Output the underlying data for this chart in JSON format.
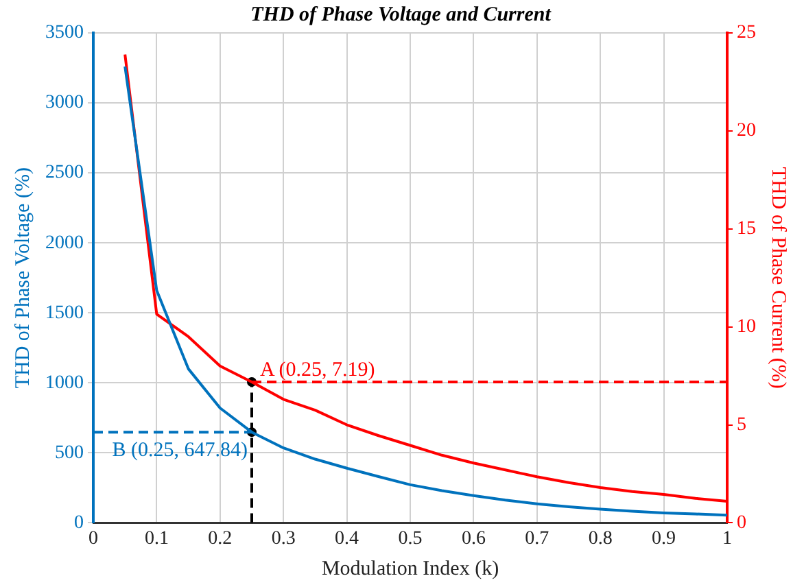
{
  "chart_data": {
    "type": "line",
    "title": "THD of Phase Voltage and Current",
    "xlabel": "Modulation Index (k)",
    "ylabel": "THD of Phase Voltage (%)",
    "y2label": "THD of Phase Current (%)",
    "x": [
      0.05,
      0.1,
      0.15,
      0.2,
      0.25,
      0.3,
      0.35,
      0.4,
      0.45,
      0.5,
      0.55,
      0.6,
      0.65,
      0.7,
      0.75,
      0.8,
      0.85,
      0.9,
      0.95,
      1.0
    ],
    "series": [
      {
        "color": "#0072bd",
        "values": [
          3260,
          1660,
          1100,
          820,
          647.84,
          535,
          455,
          390,
          330,
          272,
          230,
          194,
          162,
          136,
          115,
          97,
          83,
          71,
          63,
          55
        ]
      },
      {
        "color": "#ff0000",
        "axis": "y2",
        "values": [
          23.9,
          10.65,
          9.5,
          8.0,
          7.19,
          6.3,
          5.75,
          5.0,
          4.45,
          3.95,
          3.45,
          3.05,
          2.7,
          2.35,
          2.05,
          1.8,
          1.6,
          1.45,
          1.25,
          1.1
        ]
      },
      {
        "color": "#0072bd",
        "line_style": "dashed",
        "x": [
          0,
          0.25
        ],
        "values": [
          647.84,
          647.84
        ]
      },
      {
        "color": "#ff0000",
        "line_style": "dashed",
        "axis": "y2",
        "x": [
          0.25,
          1
        ],
        "values": [
          7.19,
          7.19
        ]
      },
      {
        "color": "#000000",
        "line_style": "dashed",
        "axis": "y2",
        "x": [
          0.25,
          0.25
        ],
        "values": [
          0,
          7.19
        ]
      },
      {
        "type": "scatter",
        "marker": "circle",
        "color": "#000000",
        "axis": "y2",
        "x": [
          0.25
        ],
        "values": [
          7.19
        ]
      },
      {
        "type": "scatter",
        "marker": "circle",
        "color": "#000000",
        "x": [
          0.25
        ],
        "values": [
          647.84
        ]
      }
    ],
    "annotations": [
      "A (0.25, 7.19)",
      "B (0.25, 647.84)"
    ],
    "xlim": [
      0,
      1
    ],
    "xticks": [
      0,
      0.1,
      0.2,
      0.3,
      0.4,
      0.5,
      0.6,
      0.7,
      0.8,
      0.9,
      1
    ],
    "ylim": [
      0,
      3500
    ],
    "yticks": [
      0,
      500,
      1000,
      1500,
      2000,
      2500,
      3000,
      3500
    ],
    "y2lim": [
      0,
      25
    ],
    "y2ticks": [
      0,
      5,
      10,
      15,
      20,
      25
    ],
    "grid": true,
    "legend": false,
    "marker": "none",
    "line_style": "solid"
  }
}
